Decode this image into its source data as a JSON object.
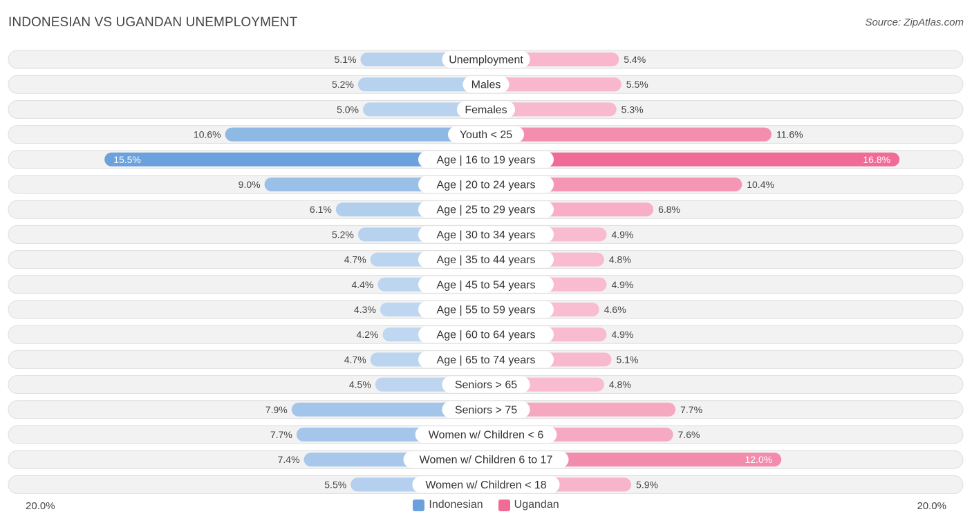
{
  "header": {
    "title": "INDONESIAN VS UGANDAN UNEMPLOYMENT",
    "source": "Source: ZipAtlas.com"
  },
  "axis": {
    "left_label": "20.0%",
    "right_label": "20.0%"
  },
  "legend": {
    "items": [
      {
        "label": "Indonesian",
        "color": "#6aa1dc"
      },
      {
        "label": "Ugandan",
        "color": "#f06b96"
      }
    ]
  },
  "chart_data": {
    "type": "bar",
    "orientation": "horizontal-diverging",
    "title": "INDONESIAN VS UGANDAN UNEMPLOYMENT",
    "xlim": [
      0,
      20
    ],
    "unit": "%",
    "categories": [
      "Unemployment",
      "Males",
      "Females",
      "Youth < 25",
      "Age | 16 to 19 years",
      "Age | 20 to 24 years",
      "Age | 25 to 29 years",
      "Age | 30 to 34 years",
      "Age | 35 to 44 years",
      "Age | 45 to 54 years",
      "Age | 55 to 59 years",
      "Age | 60 to 64 years",
      "Age | 65 to 74 years",
      "Seniors > 65",
      "Seniors > 75",
      "Women w/ Children < 6",
      "Women w/ Children 6 to 17",
      "Women w/ Children < 18"
    ],
    "series": [
      {
        "name": "Indonesian",
        "side": "left",
        "color": "#6aa1dc",
        "values": [
          5.1,
          5.2,
          5.0,
          10.6,
          15.5,
          9.0,
          6.1,
          5.2,
          4.7,
          4.4,
          4.3,
          4.2,
          4.7,
          4.5,
          7.9,
          7.7,
          7.4,
          5.5
        ],
        "labels": [
          "5.1%",
          "5.2%",
          "5.0%",
          "10.6%",
          "15.5%",
          "9.0%",
          "6.1%",
          "5.2%",
          "4.7%",
          "4.4%",
          "4.3%",
          "4.2%",
          "4.7%",
          "4.5%",
          "7.9%",
          "7.7%",
          "7.4%",
          "5.5%"
        ]
      },
      {
        "name": "Ugandan",
        "side": "right",
        "color": "#f06b96",
        "values": [
          5.4,
          5.5,
          5.3,
          11.6,
          16.8,
          10.4,
          6.8,
          4.9,
          4.8,
          4.9,
          4.6,
          4.9,
          5.1,
          4.8,
          7.7,
          7.6,
          12.0,
          5.9
        ],
        "labels": [
          "5.4%",
          "5.5%",
          "5.3%",
          "11.6%",
          "16.8%",
          "10.4%",
          "6.8%",
          "4.9%",
          "4.8%",
          "4.9%",
          "4.6%",
          "4.9%",
          "5.1%",
          "4.8%",
          "7.7%",
          "7.6%",
          "12.0%",
          "5.9%"
        ]
      }
    ]
  }
}
